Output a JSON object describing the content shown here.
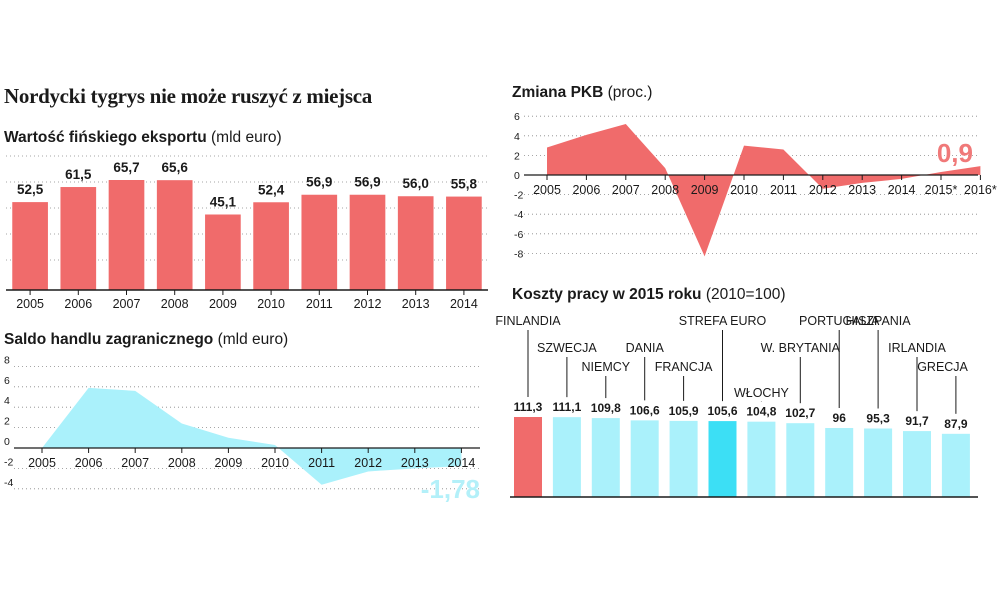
{
  "title": "Nordycki tygrys nie może ruszyć z miejsca",
  "colors": {
    "red": "#f06b6b",
    "cyan": "#aaf1fb",
    "cyan_hl": "#3cdff5",
    "label_red": "#f07979",
    "label_cyan": "#b3f0f9"
  },
  "chart_data": [
    {
      "id": "eksport",
      "type": "bar",
      "title_bold": "Wartość fińskiego eksportu",
      "title_unit": "(mld euro)",
      "categories": [
        "2005",
        "2006",
        "2007",
        "2008",
        "2009",
        "2010",
        "2011",
        "2012",
        "2013",
        "2014"
      ],
      "values": [
        52.5,
        61.5,
        65.7,
        65.6,
        45.1,
        52.4,
        56.9,
        56.9,
        56.0,
        55.8
      ],
      "labels": [
        "52,5",
        "61,5",
        "65,7",
        "65,6",
        "45,1",
        "52,4",
        "56,9",
        "56,9",
        "56,0",
        "55,8"
      ],
      "ylim": [
        0,
        70
      ],
      "gridlines": 5
    },
    {
      "id": "saldo",
      "type": "area",
      "title_bold": "Saldo handlu zagranicznego",
      "title_unit": "(mld euro)",
      "categories": [
        "2005",
        "2006",
        "2007",
        "2008",
        "2009",
        "2010",
        "2011",
        "2012",
        "2013",
        "2014"
      ],
      "values": [
        0,
        5.9,
        5.6,
        2.4,
        1.0,
        0.3,
        -3.6,
        -2.3,
        -2.0,
        -1.78
      ],
      "yticks": [
        8,
        6,
        4,
        2,
        0,
        -2,
        -4
      ],
      "ytick_labels": [
        "8",
        "6",
        "4",
        "2",
        "0",
        "-2",
        "-4"
      ],
      "highlight": "-1,78",
      "ylim": [
        -4,
        8
      ]
    },
    {
      "id": "pkb",
      "type": "area",
      "title_bold": "Zmiana PKB",
      "title_unit": "(proc.)",
      "categories": [
        "2005",
        "2006",
        "2007",
        "2008",
        "2009",
        "2010",
        "2011",
        "2012",
        "2013",
        "2014",
        "2015*",
        "2016*"
      ],
      "values": [
        2.8,
        4.1,
        5.2,
        0.7,
        -8.3,
        3.0,
        2.6,
        -1.4,
        -0.8,
        -0.4,
        0.3,
        0.9
      ],
      "yticks": [
        6,
        4,
        2,
        0,
        -2,
        -4,
        -6,
        -8
      ],
      "ytick_labels": [
        "6",
        "4",
        "2",
        "0",
        "-2",
        "-4",
        "-6",
        "-8"
      ],
      "highlight": "0,9",
      "ylim": [
        -8,
        6
      ]
    },
    {
      "id": "koszty",
      "type": "bar",
      "title_bold": "Koszty pracy w 2015 roku",
      "title_unit": "(2010=100)",
      "categories": [
        "FINLANDIA",
        "SZWECJA",
        "NIEMCY",
        "DANIA",
        "FRANCJA",
        "STREFA EURO",
        "WŁOCHY",
        "W. BRYTANIA",
        "PORTUGALIA",
        "HISZPANIA",
        "IRLANDIA",
        "GRECJA"
      ],
      "values": [
        111.3,
        111.1,
        109.8,
        106.6,
        105.9,
        105.6,
        104.8,
        102.7,
        96,
        95.3,
        91.7,
        87.9
      ],
      "labels": [
        "111,3",
        "111,1",
        "109,8",
        "106,6",
        "105,9",
        "105,6",
        "104,8",
        "102,7",
        "96",
        "95,3",
        "91,7",
        "87,9"
      ],
      "ylim": [
        0,
        112
      ]
    }
  ]
}
